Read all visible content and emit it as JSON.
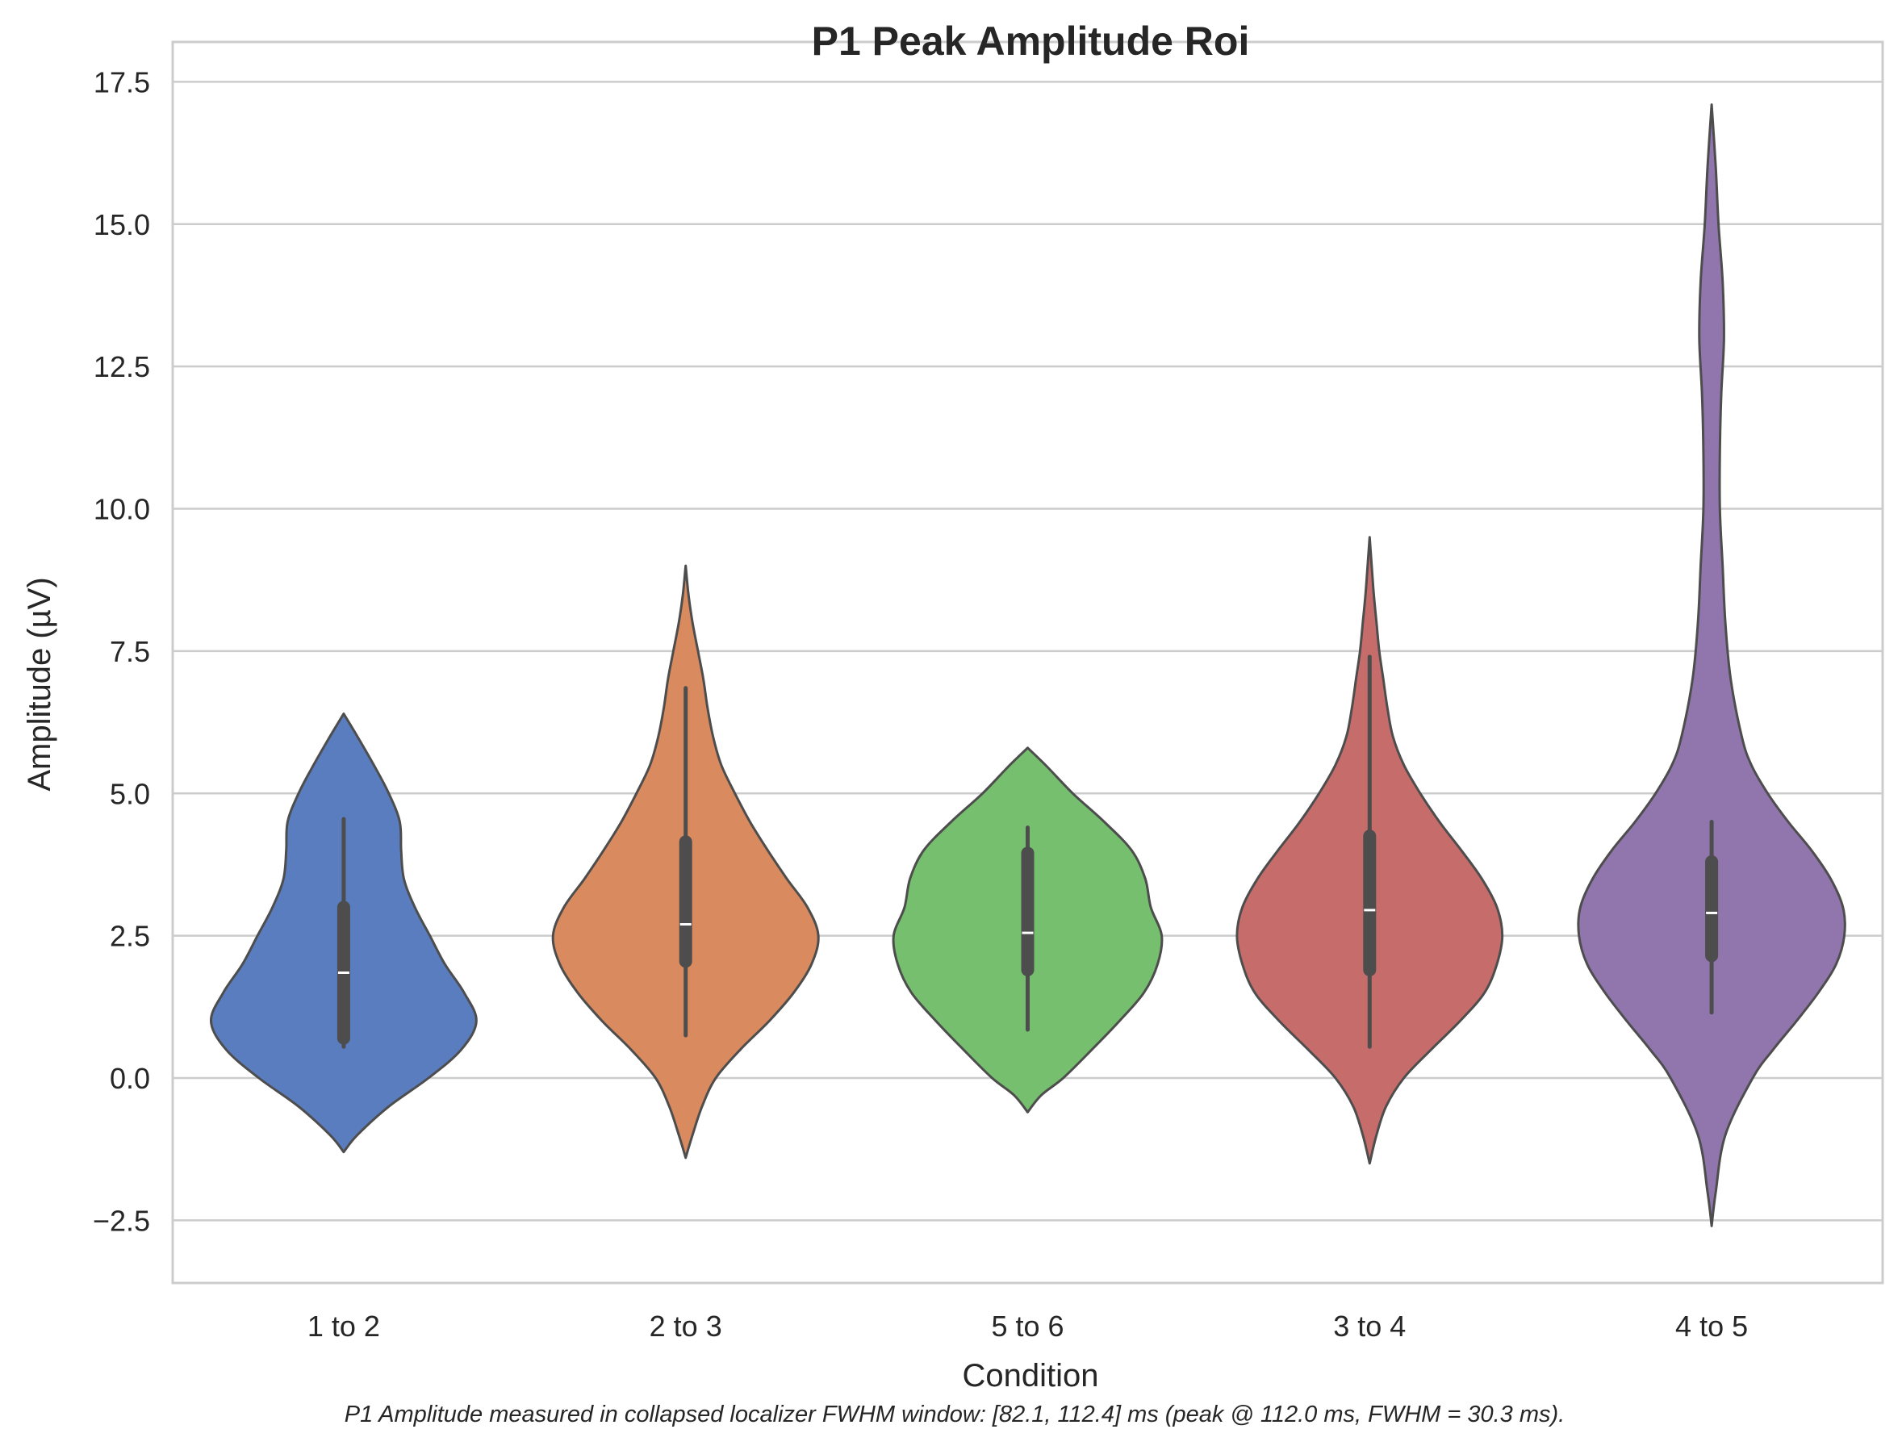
{
  "chart_data": {
    "type": "violin",
    "title": "P1 Peak Amplitude Roi",
    "xlabel": "Condition",
    "ylabel": "Amplitude (µV)",
    "footnote": "P1 Amplitude measured in collapsed localizer FWHM window: [82.1, 112.4] ms (peak @ 112.0 ms, FWHM = 30.3 ms).",
    "ylim": [
      -3.6,
      18.2
    ],
    "yticks": [
      -2.5,
      0.0,
      2.5,
      5.0,
      7.5,
      10.0,
      12.5,
      15.0,
      17.5
    ],
    "ytick_labels": [
      "−2.5",
      "0.0",
      "2.5",
      "5.0",
      "7.5",
      "10.0",
      "12.5",
      "15.0",
      "17.5"
    ],
    "grid": true,
    "categories": [
      "1 to 2",
      "2 to 3",
      "5 to 6",
      "3 to 4",
      "4 to 5"
    ],
    "series": [
      {
        "category": "1 to 2",
        "color": "#5a7dbf",
        "range": [
          -1.3,
          6.4
        ],
        "median": 1.85,
        "q1": 0.7,
        "q3": 3.0,
        "whisker_low": 0.55,
        "whisker_high": 4.55,
        "density": [
          [
            -1.3,
            0.0
          ],
          [
            -1.0,
            0.1
          ],
          [
            -0.5,
            0.33
          ],
          [
            0.0,
            0.62
          ],
          [
            0.5,
            0.86
          ],
          [
            1.0,
            0.97
          ],
          [
            1.5,
            0.88
          ],
          [
            2.0,
            0.74
          ],
          [
            2.5,
            0.63
          ],
          [
            3.0,
            0.52
          ],
          [
            3.5,
            0.44
          ],
          [
            4.0,
            0.42
          ],
          [
            4.5,
            0.41
          ],
          [
            5.0,
            0.33
          ],
          [
            5.5,
            0.22
          ],
          [
            6.0,
            0.1
          ],
          [
            6.4,
            0.0
          ]
        ]
      },
      {
        "category": "2 to 3",
        "color": "#d98a5e",
        "range": [
          -1.4,
          9.0
        ],
        "median": 2.7,
        "q1": 2.05,
        "q3": 4.15,
        "whisker_low": 0.75,
        "whisker_high": 6.85,
        "density": [
          [
            -1.4,
            0.0
          ],
          [
            -1.0,
            0.05
          ],
          [
            -0.5,
            0.12
          ],
          [
            0.0,
            0.22
          ],
          [
            0.5,
            0.4
          ],
          [
            1.0,
            0.61
          ],
          [
            1.5,
            0.79
          ],
          [
            2.0,
            0.92
          ],
          [
            2.5,
            0.97
          ],
          [
            3.0,
            0.89
          ],
          [
            3.5,
            0.74
          ],
          [
            4.0,
            0.6
          ],
          [
            4.5,
            0.47
          ],
          [
            5.0,
            0.36
          ],
          [
            5.5,
            0.26
          ],
          [
            6.0,
            0.2
          ],
          [
            6.5,
            0.16
          ],
          [
            7.0,
            0.13
          ],
          [
            7.5,
            0.09
          ],
          [
            8.0,
            0.05
          ],
          [
            8.5,
            0.02
          ],
          [
            9.0,
            0.0
          ]
        ]
      },
      {
        "category": "5 to 6",
        "color": "#75bf6e",
        "range": [
          -0.6,
          5.8
        ],
        "median": 2.55,
        "q1": 1.9,
        "q3": 3.95,
        "whisker_low": 0.85,
        "whisker_high": 4.4,
        "density": [
          [
            -0.6,
            0.0
          ],
          [
            -0.3,
            0.1
          ],
          [
            0.0,
            0.26
          ],
          [
            0.5,
            0.47
          ],
          [
            1.0,
            0.67
          ],
          [
            1.5,
            0.85
          ],
          [
            2.0,
            0.95
          ],
          [
            2.5,
            0.98
          ],
          [
            3.0,
            0.9
          ],
          [
            3.5,
            0.86
          ],
          [
            4.0,
            0.76
          ],
          [
            4.5,
            0.56
          ],
          [
            5.0,
            0.33
          ],
          [
            5.5,
            0.13
          ],
          [
            5.8,
            0.0
          ]
        ]
      },
      {
        "category": "3 to 4",
        "color": "#c66d6b",
        "range": [
          -1.5,
          9.5
        ],
        "median": 2.95,
        "q1": 1.9,
        "q3": 4.25,
        "whisker_low": 0.55,
        "whisker_high": 7.4,
        "density": [
          [
            -1.5,
            0.0
          ],
          [
            -1.0,
            0.05
          ],
          [
            -0.5,
            0.12
          ],
          [
            0.0,
            0.25
          ],
          [
            0.5,
            0.45
          ],
          [
            1.0,
            0.66
          ],
          [
            1.5,
            0.84
          ],
          [
            2.0,
            0.93
          ],
          [
            2.5,
            0.97
          ],
          [
            3.0,
            0.93
          ],
          [
            3.5,
            0.82
          ],
          [
            4.0,
            0.67
          ],
          [
            4.5,
            0.51
          ],
          [
            5.0,
            0.37
          ],
          [
            5.5,
            0.25
          ],
          [
            6.0,
            0.17
          ],
          [
            6.5,
            0.13
          ],
          [
            7.0,
            0.1
          ],
          [
            7.5,
            0.07
          ],
          [
            8.0,
            0.05
          ],
          [
            8.5,
            0.03
          ],
          [
            9.0,
            0.015
          ],
          [
            9.5,
            0.0
          ]
        ]
      },
      {
        "category": "4 to 5",
        "color": "#9176ae",
        "range": [
          -2.6,
          17.1
        ],
        "median": 2.9,
        "q1": 2.15,
        "q3": 3.8,
        "whisker_low": 1.15,
        "whisker_high": 4.5,
        "density": [
          [
            -2.6,
            0.0
          ],
          [
            -2.0,
            0.03
          ],
          [
            -1.0,
            0.1
          ],
          [
            0.0,
            0.3
          ],
          [
            0.5,
            0.45
          ],
          [
            1.0,
            0.62
          ],
          [
            1.5,
            0.78
          ],
          [
            2.0,
            0.91
          ],
          [
            2.5,
            0.97
          ],
          [
            3.0,
            0.96
          ],
          [
            3.5,
            0.87
          ],
          [
            4.0,
            0.73
          ],
          [
            4.5,
            0.56
          ],
          [
            5.0,
            0.41
          ],
          [
            5.5,
            0.29
          ],
          [
            6.0,
            0.22
          ],
          [
            7.0,
            0.14
          ],
          [
            8.0,
            0.1
          ],
          [
            9.0,
            0.08
          ],
          [
            10.0,
            0.06
          ],
          [
            11.0,
            0.06
          ],
          [
            12.0,
            0.07
          ],
          [
            13.0,
            0.09
          ],
          [
            14.0,
            0.08
          ],
          [
            15.0,
            0.05
          ],
          [
            16.0,
            0.03
          ],
          [
            17.1,
            0.0
          ]
        ]
      }
    ]
  }
}
